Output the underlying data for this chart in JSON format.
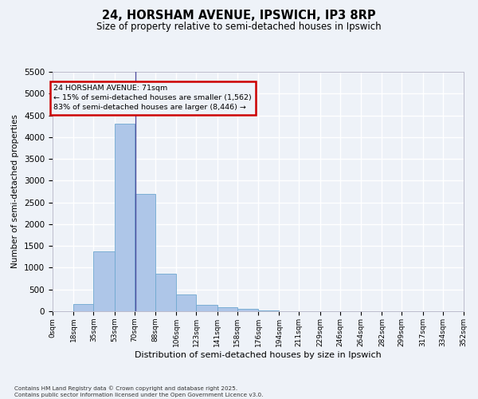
{
  "title1": "24, HORSHAM AVENUE, IPSWICH, IP3 8RP",
  "title2": "Size of property relative to semi-detached houses in Ipswich",
  "xlabel": "Distribution of semi-detached houses by size in Ipswich",
  "ylabel": "Number of semi-detached properties",
  "bar_edges": [
    0,
    18,
    35,
    53,
    70,
    88,
    106,
    123,
    141,
    158,
    176,
    194,
    211,
    229,
    246,
    264,
    282,
    299,
    317,
    334,
    352
  ],
  "bar_heights": [
    5,
    170,
    1380,
    4300,
    2700,
    860,
    390,
    150,
    100,
    60,
    20,
    5,
    2,
    2,
    1,
    1,
    1,
    1,
    1,
    1
  ],
  "bar_color": "#aec6e8",
  "bar_edge_color": "#6fa8d0",
  "vline_x": 71,
  "vline_color": "#5050a0",
  "ylim": [
    0,
    5500
  ],
  "yticks": [
    0,
    500,
    1000,
    1500,
    2000,
    2500,
    3000,
    3500,
    4000,
    4500,
    5000,
    5500
  ],
  "annotation_title": "24 HORSHAM AVENUE: 71sqm",
  "annotation_line1": "← 15% of semi-detached houses are smaller (1,562)",
  "annotation_line2": "83% of semi-detached houses are larger (8,446) →",
  "annotation_box_color": "#cc0000",
  "footer1": "Contains HM Land Registry data © Crown copyright and database right 2025.",
  "footer2": "Contains public sector information licensed under the Open Government Licence v3.0.",
  "bg_color": "#eef2f8",
  "grid_color": "#ffffff"
}
